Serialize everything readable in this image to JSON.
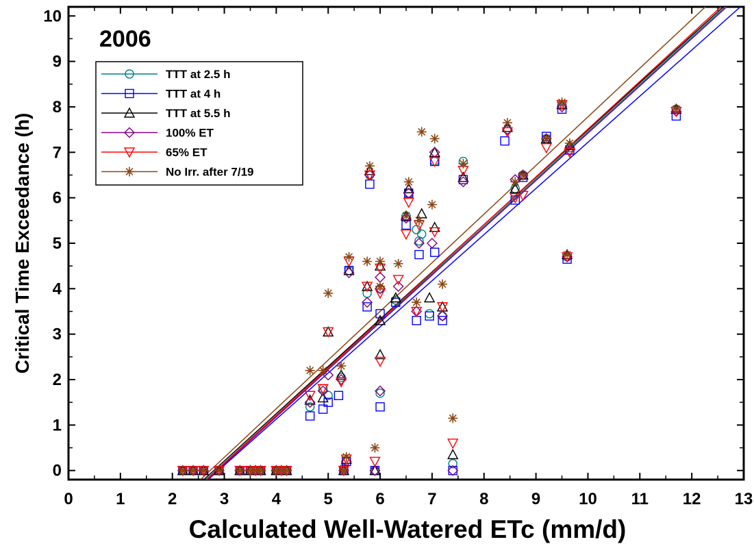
{
  "chart_data": {
    "type": "scatter",
    "title": "2006",
    "xlabel": "Calculated Well-Watered ETc (mm/d)",
    "ylabel": "Critical Time Exceedance (h)",
    "xlim": [
      0,
      13
    ],
    "ylim": [
      -0.2,
      10.2
    ],
    "xticks": [
      "0",
      "1",
      "2",
      "3",
      "4",
      "5",
      "6",
      "7",
      "8",
      "9",
      "10",
      "11",
      "12",
      "13"
    ],
    "yticks": [
      "0",
      "1",
      "2",
      "3",
      "4",
      "5",
      "6",
      "7",
      "8",
      "9",
      "10"
    ],
    "legend_position": "top-left",
    "series": [
      {
        "name": "TTT at 2.5 h",
        "marker": "circle",
        "color": "#008080",
        "fit": {
          "slope": 1.04,
          "intercept": -2.95
        },
        "points": [
          [
            2.2,
            0
          ],
          [
            2.4,
            0
          ],
          [
            2.6,
            0
          ],
          [
            2.9,
            0
          ],
          [
            3.3,
            0
          ],
          [
            3.5,
            0
          ],
          [
            3.6,
            0
          ],
          [
            3.7,
            0
          ],
          [
            4.0,
            0
          ],
          [
            4.1,
            0
          ],
          [
            4.2,
            0
          ],
          [
            4.65,
            1.4
          ],
          [
            4.9,
            1.8
          ],
          [
            5.0,
            1.65
          ],
          [
            5.25,
            2.05
          ],
          [
            5.3,
            0.05
          ],
          [
            5.4,
            4.4
          ],
          [
            5.75,
            3.9
          ],
          [
            5.8,
            6.5
          ],
          [
            5.9,
            0
          ],
          [
            6.0,
            4.0
          ],
          [
            6.0,
            1.7
          ],
          [
            6.3,
            3.75
          ],
          [
            6.5,
            5.6
          ],
          [
            6.55,
            6.1
          ],
          [
            6.7,
            5.3
          ],
          [
            6.75,
            5.05
          ],
          [
            6.8,
            5.2
          ],
          [
            6.95,
            3.45
          ],
          [
            7.05,
            6.8
          ],
          [
            7.2,
            3.4
          ],
          [
            7.4,
            0.15
          ],
          [
            7.6,
            6.8
          ],
          [
            8.45,
            7.5
          ],
          [
            8.6,
            6.2
          ],
          [
            8.75,
            6.5
          ],
          [
            9.2,
            7.3
          ],
          [
            9.5,
            8.05
          ],
          [
            9.6,
            4.7
          ],
          [
            9.65,
            7.1
          ],
          [
            11.7,
            7.95
          ]
        ]
      },
      {
        "name": "TTT at 4 h",
        "marker": "square",
        "color": "#0000ff",
        "fit": {
          "slope": 1.015,
          "intercept": -2.93
        },
        "points": [
          [
            2.2,
            0
          ],
          [
            2.4,
            0
          ],
          [
            2.6,
            0
          ],
          [
            2.9,
            0
          ],
          [
            3.3,
            0
          ],
          [
            3.5,
            0
          ],
          [
            3.6,
            0
          ],
          [
            3.7,
            0
          ],
          [
            4.0,
            0
          ],
          [
            4.1,
            0
          ],
          [
            4.2,
            0
          ],
          [
            4.65,
            1.2
          ],
          [
            4.9,
            1.35
          ],
          [
            5.0,
            1.5
          ],
          [
            5.2,
            1.65
          ],
          [
            5.3,
            0
          ],
          [
            5.35,
            0.2
          ],
          [
            5.4,
            4.4
          ],
          [
            5.75,
            3.6
          ],
          [
            5.8,
            6.3
          ],
          [
            5.9,
            0
          ],
          [
            6.0,
            3.45
          ],
          [
            6.0,
            1.4
          ],
          [
            6.3,
            3.7
          ],
          [
            6.5,
            5.4
          ],
          [
            6.55,
            6.1
          ],
          [
            6.7,
            3.3
          ],
          [
            6.75,
            4.75
          ],
          [
            6.95,
            3.4
          ],
          [
            7.05,
            4.8
          ],
          [
            7.05,
            6.8
          ],
          [
            7.2,
            3.3
          ],
          [
            7.4,
            0
          ],
          [
            7.6,
            6.4
          ],
          [
            8.4,
            7.25
          ],
          [
            8.6,
            5.95
          ],
          [
            8.75,
            6.45
          ],
          [
            9.2,
            7.35
          ],
          [
            9.5,
            7.95
          ],
          [
            9.6,
            4.65
          ],
          [
            9.65,
            7.05
          ],
          [
            11.7,
            7.8
          ]
        ]
      },
      {
        "name": "TTT at 5.5 h",
        "marker": "triangle-up",
        "color": "#000000",
        "fit": {
          "slope": 1.04,
          "intercept": -2.91
        },
        "points": [
          [
            2.2,
            0
          ],
          [
            2.4,
            0
          ],
          [
            2.6,
            0
          ],
          [
            2.9,
            0
          ],
          [
            3.3,
            0
          ],
          [
            3.5,
            0
          ],
          [
            3.6,
            0
          ],
          [
            3.7,
            0
          ],
          [
            4.0,
            0
          ],
          [
            4.1,
            0
          ],
          [
            4.2,
            0
          ],
          [
            4.65,
            1.55
          ],
          [
            4.9,
            1.6
          ],
          [
            5.0,
            3.05
          ],
          [
            5.25,
            2.1
          ],
          [
            5.3,
            0
          ],
          [
            5.35,
            0.25
          ],
          [
            5.4,
            4.4
          ],
          [
            5.75,
            4.05
          ],
          [
            5.8,
            6.6
          ],
          [
            5.9,
            0
          ],
          [
            6.0,
            3.3
          ],
          [
            6.0,
            4.5
          ],
          [
            6.0,
            2.55
          ],
          [
            6.3,
            3.8
          ],
          [
            6.5,
            5.6
          ],
          [
            6.55,
            6.2
          ],
          [
            6.8,
            5.65
          ],
          [
            6.95,
            3.8
          ],
          [
            7.05,
            5.35
          ],
          [
            7.05,
            7.0
          ],
          [
            7.2,
            3.6
          ],
          [
            7.4,
            0.35
          ],
          [
            7.6,
            6.45
          ],
          [
            8.45,
            7.55
          ],
          [
            8.6,
            6.2
          ],
          [
            8.75,
            6.5
          ],
          [
            9.2,
            7.3
          ],
          [
            9.5,
            8.05
          ],
          [
            9.6,
            4.75
          ],
          [
            9.65,
            7.15
          ],
          [
            11.7,
            7.95
          ]
        ]
      },
      {
        "name": "100% ET",
        "marker": "diamond",
        "color": "#800080",
        "fit": {
          "slope": 1.04,
          "intercept": -2.98
        },
        "points": [
          [
            2.2,
            0
          ],
          [
            2.4,
            0
          ],
          [
            2.6,
            0
          ],
          [
            2.9,
            0
          ],
          [
            3.3,
            0
          ],
          [
            3.5,
            0
          ],
          [
            3.6,
            0
          ],
          [
            3.7,
            0
          ],
          [
            4.0,
            0
          ],
          [
            4.1,
            0
          ],
          [
            4.2,
            0
          ],
          [
            4.65,
            1.5
          ],
          [
            4.9,
            1.75
          ],
          [
            5.0,
            2.1
          ],
          [
            5.25,
            2.0
          ],
          [
            5.3,
            0
          ],
          [
            5.35,
            0.2
          ],
          [
            5.4,
            4.35
          ],
          [
            5.75,
            3.7
          ],
          [
            5.8,
            6.5
          ],
          [
            5.9,
            0
          ],
          [
            6.0,
            4.25
          ],
          [
            6.0,
            1.75
          ],
          [
            6.0,
            4.0
          ],
          [
            6.35,
            4.05
          ],
          [
            6.5,
            5.55
          ],
          [
            6.55,
            6.1
          ],
          [
            6.7,
            3.5
          ],
          [
            6.75,
            5.0
          ],
          [
            7.0,
            5.0
          ],
          [
            7.05,
            7.0
          ],
          [
            7.2,
            3.4
          ],
          [
            7.4,
            0
          ],
          [
            7.6,
            6.35
          ],
          [
            8.45,
            7.5
          ],
          [
            8.6,
            6.4
          ],
          [
            8.75,
            6.5
          ],
          [
            9.2,
            7.3
          ],
          [
            9.5,
            8.0
          ],
          [
            9.6,
            4.7
          ],
          [
            9.65,
            7.05
          ],
          [
            11.7,
            7.9
          ]
        ]
      },
      {
        "name": "65% ET",
        "marker": "triangle-down",
        "color": "#ff0000",
        "fit": {
          "slope": 1.05,
          "intercept": -2.99
        },
        "points": [
          [
            2.2,
            0
          ],
          [
            2.4,
            0
          ],
          [
            2.6,
            0
          ],
          [
            2.9,
            0
          ],
          [
            3.3,
            0
          ],
          [
            3.5,
            0
          ],
          [
            3.6,
            0
          ],
          [
            3.7,
            0
          ],
          [
            4.0,
            0
          ],
          [
            4.1,
            0
          ],
          [
            4.2,
            0
          ],
          [
            4.65,
            1.65
          ],
          [
            4.9,
            1.8
          ],
          [
            5.0,
            3.05
          ],
          [
            5.25,
            1.95
          ],
          [
            5.3,
            0
          ],
          [
            5.35,
            0.25
          ],
          [
            5.4,
            4.6
          ],
          [
            5.75,
            4.05
          ],
          [
            5.8,
            6.5
          ],
          [
            5.9,
            0.2
          ],
          [
            6.0,
            4.45
          ],
          [
            6.0,
            2.4
          ],
          [
            6.0,
            3.9
          ],
          [
            6.35,
            4.2
          ],
          [
            6.5,
            5.2
          ],
          [
            6.55,
            5.9
          ],
          [
            6.7,
            3.5
          ],
          [
            6.75,
            5.4
          ],
          [
            7.05,
            5.25
          ],
          [
            7.05,
            6.8
          ],
          [
            7.2,
            3.6
          ],
          [
            7.4,
            0.6
          ],
          [
            7.6,
            6.6
          ],
          [
            8.45,
            7.45
          ],
          [
            8.6,
            6.0
          ],
          [
            8.75,
            6.05
          ],
          [
            9.2,
            7.1
          ],
          [
            9.5,
            8.05
          ],
          [
            9.6,
            4.7
          ],
          [
            9.65,
            7.0
          ],
          [
            11.7,
            7.9
          ]
        ]
      },
      {
        "name": "No Irr. after 7/19",
        "marker": "asterisk",
        "color": "#8b4513",
        "fit": {
          "slope": 1.07,
          "intercept": -2.92
        },
        "points": [
          [
            2.2,
            0
          ],
          [
            2.4,
            0
          ],
          [
            2.6,
            0
          ],
          [
            2.9,
            0
          ],
          [
            3.3,
            0
          ],
          [
            3.5,
            0
          ],
          [
            3.6,
            0
          ],
          [
            3.7,
            0
          ],
          [
            4.0,
            0
          ],
          [
            4.1,
            0
          ],
          [
            4.2,
            0
          ],
          [
            4.65,
            2.2
          ],
          [
            4.9,
            2.2
          ],
          [
            5.0,
            3.9
          ],
          [
            5.25,
            2.3
          ],
          [
            5.3,
            0
          ],
          [
            5.35,
            0.3
          ],
          [
            5.4,
            4.7
          ],
          [
            5.75,
            4.6
          ],
          [
            5.8,
            6.7
          ],
          [
            5.9,
            0.5
          ],
          [
            6.0,
            4.6
          ],
          [
            6.0,
            4.05
          ],
          [
            6.35,
            4.55
          ],
          [
            6.5,
            5.6
          ],
          [
            6.55,
            6.35
          ],
          [
            6.7,
            3.7
          ],
          [
            6.75,
            5.5
          ],
          [
            6.8,
            7.45
          ],
          [
            7.0,
            5.85
          ],
          [
            7.05,
            7.3
          ],
          [
            7.2,
            4.1
          ],
          [
            7.4,
            1.15
          ],
          [
            7.6,
            6.75
          ],
          [
            8.45,
            7.65
          ],
          [
            8.6,
            6.35
          ],
          [
            8.75,
            6.5
          ],
          [
            9.2,
            7.3
          ],
          [
            9.5,
            8.1
          ],
          [
            9.6,
            4.75
          ],
          [
            9.65,
            7.2
          ],
          [
            11.7,
            7.95
          ]
        ]
      }
    ]
  }
}
